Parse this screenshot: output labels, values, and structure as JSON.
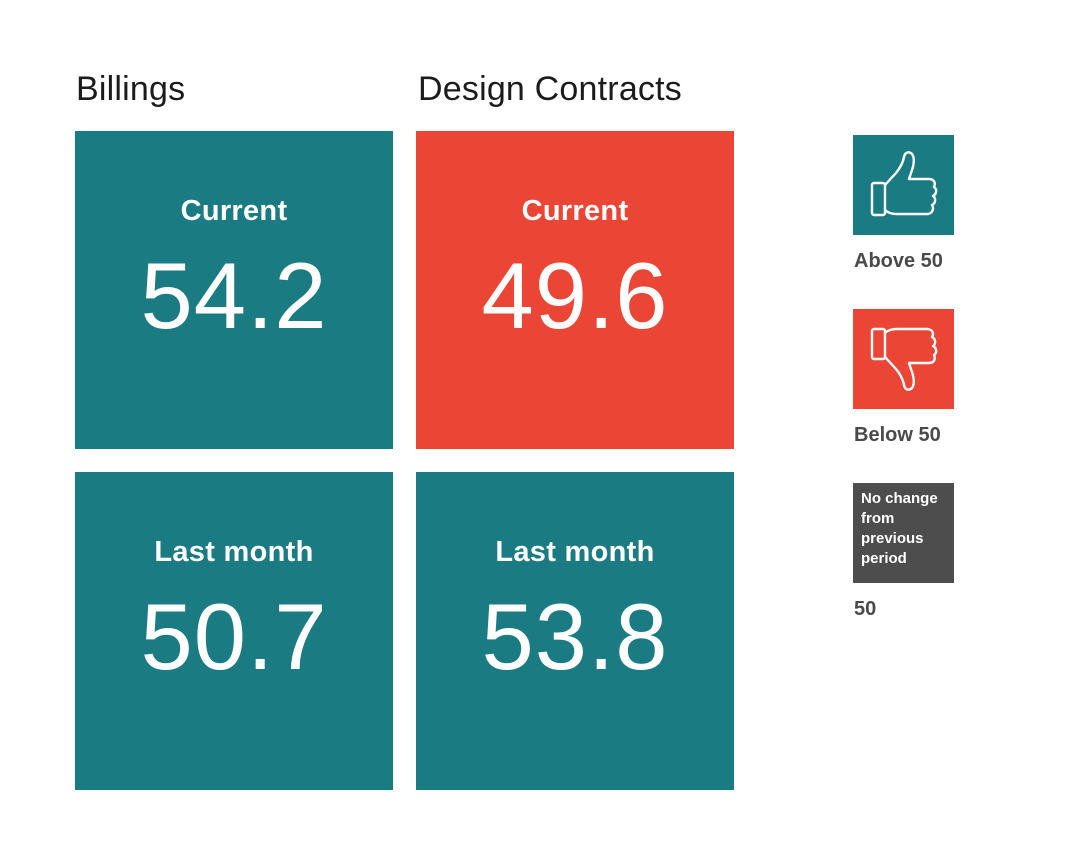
{
  "colors": {
    "teal": "#1b7b82",
    "red": "#ea4535",
    "gray": "#4d4d4d"
  },
  "billings": {
    "title": "Billings",
    "current": {
      "label": "Current",
      "value": "54.2",
      "status": "above"
    },
    "last_month": {
      "label": "Last month",
      "value": "50.7",
      "status": "above"
    }
  },
  "design_contracts": {
    "title": "Design Contracts",
    "current": {
      "label": "Current",
      "value": "49.6",
      "status": "below"
    },
    "last_month": {
      "label": "Last month",
      "value": "53.8",
      "status": "above"
    }
  },
  "legend": {
    "above": {
      "icon": "thumbs-up-icon",
      "caption": "Above 50"
    },
    "below": {
      "icon": "thumbs-down-icon",
      "caption": "Below 50"
    },
    "no_change": {
      "box_text": "No change from previous period",
      "caption": "50"
    }
  }
}
